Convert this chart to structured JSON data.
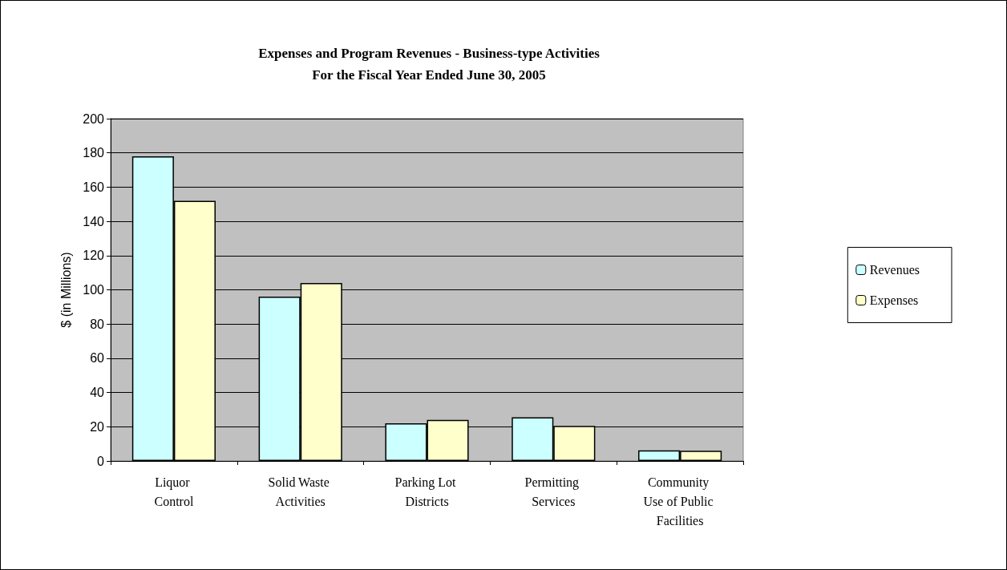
{
  "chart_data": {
    "type": "bar",
    "title": "Expenses and Program Revenues - Business-type Activities\nFor the Fiscal Year Ended June 30, 2005",
    "ylabel": "$ (in Millions)",
    "categories": [
      "Liquor Control",
      "Solid Waste Activities",
      "Parking Lot Districts",
      "Permitting Services",
      "Community Use of Public Facilities"
    ],
    "series": [
      {
        "name": "Revenues",
        "color": "#ccffff",
        "values": [
          178,
          96,
          22,
          25.5,
          6.2
        ]
      },
      {
        "name": "Expenses",
        "color": "#ffffcc",
        "values": [
          152,
          104,
          24,
          20.5,
          6
        ]
      }
    ],
    "ylim": [
      0,
      200
    ],
    "yticks": [
      0,
      20,
      40,
      60,
      80,
      100,
      120,
      140,
      160,
      180,
      200
    ],
    "grid": "y",
    "legend": "right"
  }
}
